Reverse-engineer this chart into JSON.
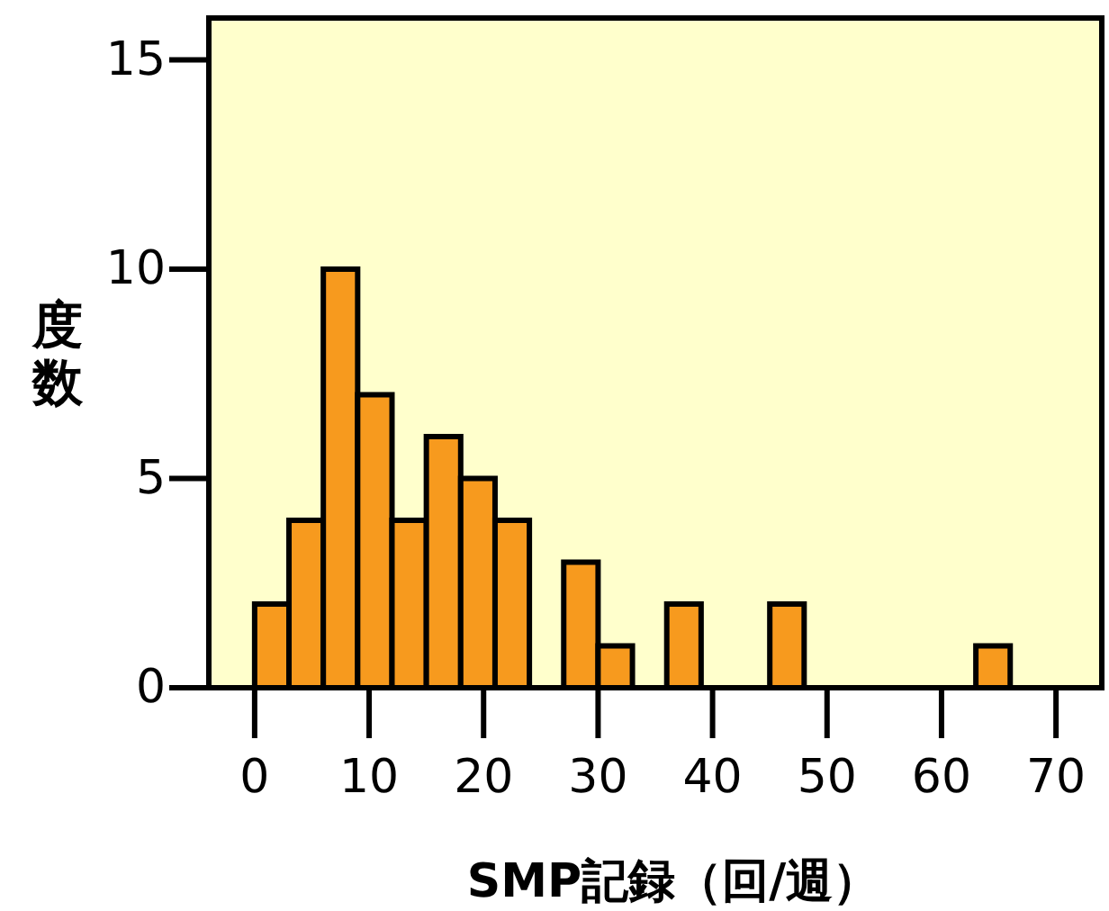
{
  "chart_data": {
    "type": "histogram",
    "xlabel": "SMP記録（回/週）",
    "ylabel": "度数",
    "bins": [
      0,
      3,
      6,
      9,
      12,
      15,
      18,
      21,
      24,
      27,
      30,
      33,
      36,
      39,
      42,
      45,
      48,
      51,
      54,
      57,
      60,
      63,
      66
    ],
    "values": [
      2,
      4,
      10,
      7,
      4,
      6,
      5,
      4,
      0,
      3,
      1,
      0,
      2,
      0,
      0,
      2,
      0,
      0,
      0,
      0,
      0,
      1
    ],
    "color": "#f79a1e",
    "xlim": [
      -4,
      74
    ],
    "xticks": [
      0,
      10,
      20,
      30,
      40,
      50,
      60,
      70
    ],
    "ylim": [
      0,
      16
    ],
    "yticks": [
      0,
      5,
      10,
      15
    ],
    "grid": false
  }
}
